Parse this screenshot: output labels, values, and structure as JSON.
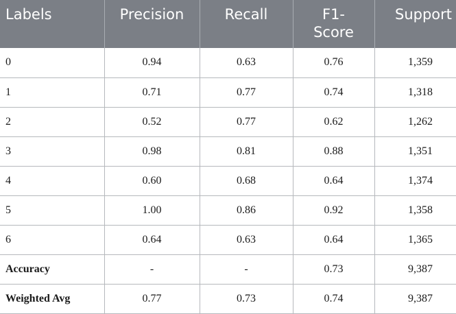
{
  "table": {
    "headers": [
      "Labels",
      "Precision",
      "Recall",
      "F1-\nScore",
      "Support"
    ],
    "rows": [
      {
        "label": "0",
        "precision": "0.94",
        "recall": "0.63",
        "f1": "0.76",
        "support": "1,359",
        "bold": false
      },
      {
        "label": "1",
        "precision": "0.71",
        "recall": "0.77",
        "f1": "0.74",
        "support": "1,318",
        "bold": false
      },
      {
        "label": "2",
        "precision": "0.52",
        "recall": "0.77",
        "f1": "0.62",
        "support": "1,262",
        "bold": false
      },
      {
        "label": "3",
        "precision": "0.98",
        "recall": "0.81",
        "f1": "0.88",
        "support": "1,351",
        "bold": false
      },
      {
        "label": "4",
        "precision": "0.60",
        "recall": "0.68",
        "f1": "0.64",
        "support": "1,374",
        "bold": false
      },
      {
        "label": "5",
        "precision": "1.00",
        "recall": "0.86",
        "f1": "0.92",
        "support": "1,358",
        "bold": false
      },
      {
        "label": "6",
        "precision": "0.64",
        "recall": "0.63",
        "f1": "0.64",
        "support": "1,365",
        "bold": false
      },
      {
        "label": "Accuracy",
        "precision": "-",
        "recall": "-",
        "f1": "0.73",
        "support": "9,387",
        "bold": true
      },
      {
        "label": "Weighted Avg",
        "precision": "0.77",
        "recall": "0.73",
        "f1": "0.74",
        "support": "9,387",
        "bold": true
      }
    ]
  },
  "colors": {
    "header_bg": "#7b7f86",
    "header_text": "#ffffff",
    "grid": "#b5b8bc"
  }
}
